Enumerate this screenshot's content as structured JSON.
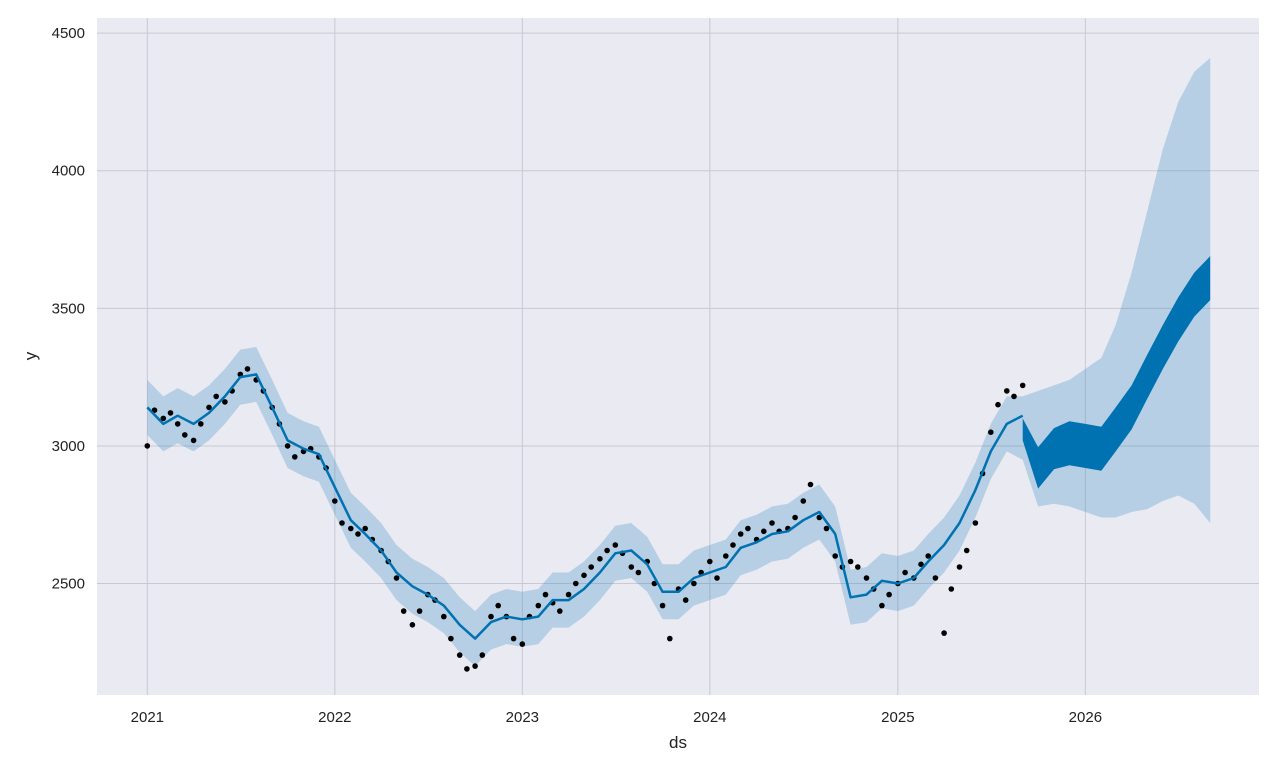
{
  "chart_data": {
    "type": "line",
    "title": "",
    "xlabel": "ds",
    "ylabel": "y",
    "xlim": [
      "2020-09-25",
      "2026-12-05"
    ],
    "ylim": [
      2095,
      4555
    ],
    "grid": true,
    "legend": "none",
    "x_ticks": [
      {
        "date": "2021-01-01",
        "label": "2021"
      },
      {
        "date": "2022-01-01",
        "label": "2022"
      },
      {
        "date": "2023-01-01",
        "label": "2023"
      },
      {
        "date": "2024-01-01",
        "label": "2024"
      },
      {
        "date": "2025-01-01",
        "label": "2025"
      },
      {
        "date": "2026-01-01",
        "label": "2026"
      }
    ],
    "y_ticks": [
      {
        "value": 2500,
        "label": "2500"
      },
      {
        "value": 3000,
        "label": "3000"
      },
      {
        "value": 3500,
        "label": "3500"
      },
      {
        "value": 4000,
        "label": "4000"
      },
      {
        "value": 4500,
        "label": "4500"
      }
    ],
    "colors": {
      "background": "#eaeaf2",
      "grid": "#c9c9d3",
      "observed": "#000000",
      "forecast": "#0072b2",
      "interval": "#0072b2"
    },
    "series": [
      {
        "role": "observed points",
        "x": [
          "2021-01-01",
          "2021-01-15",
          "2021-02-01",
          "2021-02-15",
          "2021-03-01",
          "2021-03-15",
          "2021-04-01",
          "2021-04-15",
          "2021-05-01",
          "2021-05-15",
          "2021-06-01",
          "2021-06-15",
          "2021-07-01",
          "2021-07-15",
          "2021-08-01",
          "2021-08-15",
          "2021-09-01",
          "2021-09-15",
          "2021-10-01",
          "2021-10-15",
          "2021-11-01",
          "2021-11-15",
          "2021-12-01",
          "2021-12-15",
          "2022-01-01",
          "2022-01-15",
          "2022-02-01",
          "2022-02-15",
          "2022-03-01",
          "2022-03-15",
          "2022-04-01",
          "2022-04-15",
          "2022-05-01",
          "2022-05-15",
          "2022-06-01",
          "2022-06-15",
          "2022-07-01",
          "2022-07-15",
          "2022-08-01",
          "2022-08-15",
          "2022-09-01",
          "2022-09-15",
          "2022-10-01",
          "2022-10-15",
          "2022-11-01",
          "2022-11-15",
          "2022-12-01",
          "2022-12-15",
          "2023-01-01",
          "2023-01-15",
          "2023-02-01",
          "2023-02-15",
          "2023-03-01",
          "2023-03-15",
          "2023-04-01",
          "2023-04-15",
          "2023-05-01",
          "2023-05-15",
          "2023-06-01",
          "2023-06-15",
          "2023-07-01",
          "2023-07-15",
          "2023-08-01",
          "2023-08-15",
          "2023-09-01",
          "2023-09-15",
          "2023-10-01",
          "2023-10-15",
          "2023-11-01",
          "2023-11-15",
          "2023-12-01",
          "2023-12-15",
          "2024-01-01",
          "2024-01-15",
          "2024-02-01",
          "2024-02-15",
          "2024-03-01",
          "2024-03-15",
          "2024-04-01",
          "2024-04-15",
          "2024-05-01",
          "2024-05-15",
          "2024-06-01",
          "2024-06-15",
          "2024-07-01",
          "2024-07-15",
          "2024-08-01",
          "2024-08-15",
          "2024-09-01",
          "2024-09-15",
          "2024-10-01",
          "2024-10-15",
          "2024-11-01",
          "2024-11-15",
          "2024-12-01",
          "2024-12-15",
          "2025-01-01",
          "2025-01-15",
          "2025-02-01",
          "2025-02-15",
          "2025-03-01",
          "2025-03-15",
          "2025-04-01",
          "2025-04-15",
          "2025-05-01",
          "2025-05-15",
          "2025-06-01",
          "2025-06-15",
          "2025-07-01",
          "2025-07-15",
          "2025-08-01",
          "2025-08-15",
          "2025-09-01"
        ],
        "y": [
          3000,
          3130,
          3100,
          3120,
          3080,
          3040,
          3020,
          3080,
          3140,
          3180,
          3160,
          3200,
          3260,
          3280,
          3240,
          3200,
          3140,
          3080,
          3000,
          2960,
          2980,
          2990,
          2960,
          2920,
          2800,
          2720,
          2700,
          2680,
          2700,
          2660,
          2620,
          2580,
          2520,
          2400,
          2350,
          2400,
          2460,
          2440,
          2380,
          2300,
          2240,
          2190,
          2200,
          2240,
          2380,
          2420,
          2380,
          2300,
          2280,
          2380,
          2420,
          2460,
          2430,
          2400,
          2460,
          2500,
          2530,
          2560,
          2590,
          2620,
          2640,
          2610,
          2560,
          2540,
          2580,
          2500,
          2420,
          2300,
          2480,
          2440,
          2500,
          2540,
          2580,
          2520,
          2600,
          2640,
          2680,
          2700,
          2660,
          2690,
          2720,
          2690,
          2700,
          2740,
          2800,
          2860,
          2740,
          2700,
          2600,
          2560,
          2580,
          2560,
          2520,
          2480,
          2420,
          2460,
          2500,
          2540,
          2520,
          2570,
          2600,
          2520,
          2320,
          2480,
          2560,
          2620,
          2720,
          2900,
          3050,
          3150,
          3200,
          3180,
          3220
        ]
      },
      {
        "role": "forecast yhat",
        "x": [
          "2021-01-01",
          "2021-02-01",
          "2021-03-01",
          "2021-04-01",
          "2021-05-01",
          "2021-06-01",
          "2021-07-01",
          "2021-08-01",
          "2021-09-01",
          "2021-10-01",
          "2021-11-01",
          "2021-12-01",
          "2022-01-01",
          "2022-02-01",
          "2022-03-01",
          "2022-04-01",
          "2022-05-01",
          "2022-06-01",
          "2022-07-01",
          "2022-08-01",
          "2022-09-01",
          "2022-10-01",
          "2022-11-01",
          "2022-12-01",
          "2023-01-01",
          "2023-02-01",
          "2023-03-01",
          "2023-04-01",
          "2023-05-01",
          "2023-06-01",
          "2023-07-01",
          "2023-08-01",
          "2023-09-01",
          "2023-10-01",
          "2023-11-01",
          "2023-12-01",
          "2024-01-01",
          "2024-02-01",
          "2024-03-01",
          "2024-04-01",
          "2024-05-01",
          "2024-06-01",
          "2024-07-01",
          "2024-08-01",
          "2024-09-01",
          "2024-10-01",
          "2024-11-01",
          "2024-12-01",
          "2025-01-01",
          "2025-02-01",
          "2025-03-01",
          "2025-04-01",
          "2025-05-01",
          "2025-06-01",
          "2025-07-01",
          "2025-08-01",
          "2025-09-01"
        ],
        "y": [
          3140,
          3080,
          3110,
          3080,
          3120,
          3180,
          3250,
          3260,
          3140,
          3020,
          2990,
          2970,
          2850,
          2730,
          2680,
          2620,
          2540,
          2490,
          2460,
          2420,
          2350,
          2300,
          2360,
          2380,
          2370,
          2380,
          2440,
          2440,
          2480,
          2540,
          2610,
          2620,
          2570,
          2470,
          2470,
          2520,
          2540,
          2560,
          2630,
          2650,
          2680,
          2690,
          2730,
          2760,
          2680,
          2450,
          2460,
          2510,
          2500,
          2520,
          2580,
          2640,
          2720,
          2840,
          2980,
          3080,
          3110
        ]
      },
      {
        "role": "forecast band center",
        "x": [
          "2025-09-01",
          "2025-10-01",
          "2025-11-01",
          "2025-12-01",
          "2026-01-01",
          "2026-02-01",
          "2026-03-01",
          "2026-04-01",
          "2026-05-01",
          "2026-06-01",
          "2026-07-01",
          "2026-08-01",
          "2026-09-01"
        ],
        "y": [
          3060,
          2920,
          2990,
          3010,
          3000,
          2990,
          3060,
          3140,
          3250,
          3360,
          3460,
          3550,
          3610
        ]
      },
      {
        "role": "forecast band half-height",
        "x": [
          "2025-09-01",
          "2025-10-01",
          "2025-11-01",
          "2025-12-01",
          "2026-01-01",
          "2026-02-01",
          "2026-03-01",
          "2026-04-01",
          "2026-05-01",
          "2026-06-01",
          "2026-07-01",
          "2026-08-01",
          "2026-09-01"
        ],
        "y": [
          40,
          75,
          75,
          80,
          80,
          80,
          80,
          80,
          80,
          80,
          80,
          80,
          80
        ]
      },
      {
        "role": "uncertainty interval",
        "x": [
          "2021-01-01",
          "2021-02-01",
          "2021-03-01",
          "2021-04-01",
          "2021-05-01",
          "2021-06-01",
          "2021-07-01",
          "2021-08-01",
          "2021-09-01",
          "2021-10-01",
          "2021-11-01",
          "2021-12-01",
          "2022-01-01",
          "2022-02-01",
          "2022-03-01",
          "2022-04-01",
          "2022-05-01",
          "2022-06-01",
          "2022-07-01",
          "2022-08-01",
          "2022-09-01",
          "2022-10-01",
          "2022-11-01",
          "2022-12-01",
          "2023-01-01",
          "2023-02-01",
          "2023-03-01",
          "2023-04-01",
          "2023-05-01",
          "2023-06-01",
          "2023-07-01",
          "2023-08-01",
          "2023-09-01",
          "2023-10-01",
          "2023-11-01",
          "2023-12-01",
          "2024-01-01",
          "2024-02-01",
          "2024-03-01",
          "2024-04-01",
          "2024-05-01",
          "2024-06-01",
          "2024-07-01",
          "2024-08-01",
          "2024-09-01",
          "2024-10-01",
          "2024-11-01",
          "2024-12-01",
          "2025-01-01",
          "2025-02-01",
          "2025-03-01",
          "2025-04-01",
          "2025-05-01",
          "2025-06-01",
          "2025-07-01",
          "2025-08-01",
          "2025-09-01",
          "2025-10-01",
          "2025-11-01",
          "2025-12-01",
          "2026-01-01",
          "2026-02-01",
          "2026-03-01",
          "2026-04-01",
          "2026-05-01",
          "2026-06-01",
          "2026-07-01",
          "2026-08-01",
          "2026-09-01"
        ],
        "lower": [
          3040,
          2980,
          3010,
          2980,
          3020,
          3080,
          3150,
          3160,
          3040,
          2920,
          2890,
          2870,
          2750,
          2630,
          2580,
          2520,
          2440,
          2390,
          2360,
          2320,
          2250,
          2200,
          2260,
          2280,
          2270,
          2280,
          2340,
          2340,
          2380,
          2440,
          2510,
          2520,
          2470,
          2370,
          2370,
          2420,
          2440,
          2460,
          2530,
          2550,
          2580,
          2590,
          2630,
          2660,
          2580,
          2350,
          2360,
          2410,
          2400,
          2420,
          2480,
          2540,
          2620,
          2740,
          2880,
          2980,
          2950,
          2780,
          2790,
          2780,
          2760,
          2740,
          2740,
          2760,
          2770,
          2800,
          2820,
          2790,
          2720
        ],
        "upper": [
          3240,
          3180,
          3210,
          3180,
          3220,
          3280,
          3350,
          3360,
          3240,
          3120,
          3090,
          3070,
          2950,
          2830,
          2780,
          2720,
          2640,
          2590,
          2560,
          2520,
          2450,
          2400,
          2460,
          2480,
          2470,
          2480,
          2540,
          2540,
          2580,
          2640,
          2710,
          2720,
          2670,
          2570,
          2570,
          2620,
          2640,
          2660,
          2730,
          2750,
          2780,
          2790,
          2830,
          2860,
          2780,
          2550,
          2560,
          2610,
          2600,
          2620,
          2680,
          2740,
          2820,
          2940,
          3080,
          3180,
          3180,
          3200,
          3220,
          3240,
          3280,
          3320,
          3440,
          3630,
          3850,
          4080,
          4250,
          4360,
          4410
        ]
      }
    ]
  }
}
